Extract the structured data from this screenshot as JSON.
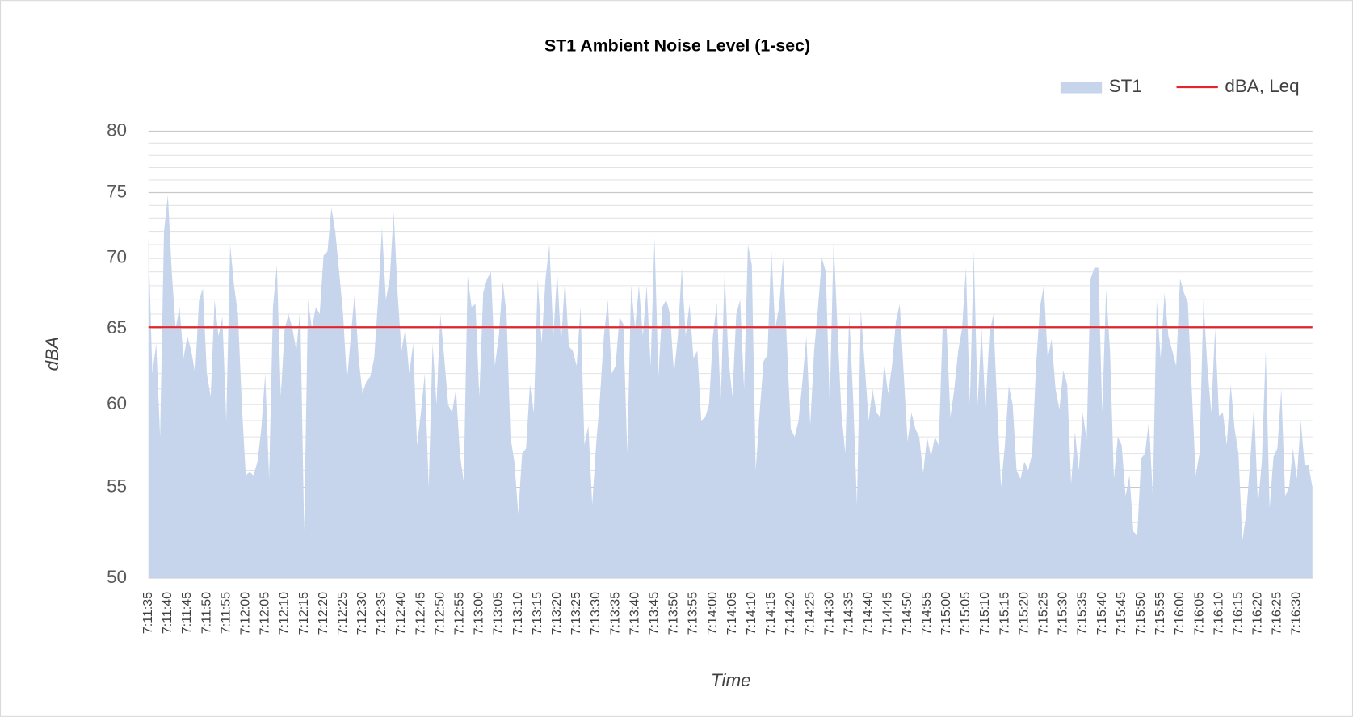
{
  "chart_data": {
    "type": "area",
    "title": "ST1 Ambient Noise Level (1-sec)",
    "x_label": "Time",
    "y_label": "dBA",
    "log_scale": true,
    "grid": true,
    "legend": "top-right",
    "ylim": [
      50,
      80
    ],
    "yticks": [
      50,
      55,
      60,
      65,
      70,
      75,
      80
    ],
    "minor_yticks": [
      51,
      52,
      53,
      54,
      56,
      57,
      58,
      59,
      61,
      62,
      63,
      64,
      66,
      67,
      68,
      69,
      71,
      72,
      73,
      74,
      76,
      77,
      78,
      79
    ],
    "categories": [
      "7:11:35",
      null,
      null,
      null,
      null,
      "7:11:40",
      null,
      null,
      null,
      null,
      "7:11:45",
      null,
      null,
      null,
      null,
      "7:11:50",
      null,
      null,
      null,
      null,
      "7:11:55",
      null,
      null,
      null,
      null,
      "7:12:00",
      null,
      null,
      null,
      null,
      "7:12:05",
      null,
      null,
      null,
      null,
      "7:12:10",
      null,
      null,
      null,
      null,
      "7:12:15",
      null,
      null,
      null,
      null,
      "7:12:20",
      null,
      null,
      null,
      null,
      "7:12:25",
      null,
      null,
      null,
      null,
      "7:12:30",
      null,
      null,
      null,
      null,
      "7:12:35",
      null,
      null,
      null,
      null,
      "7:12:40",
      null,
      null,
      null,
      null,
      "7:12:45",
      null,
      null,
      null,
      null,
      "7:12:50",
      null,
      null,
      null,
      null,
      "7:12:55",
      null,
      null,
      null,
      null,
      "7:13:00",
      null,
      null,
      null,
      null,
      "7:13:05",
      null,
      null,
      null,
      null,
      "7:13:10",
      null,
      null,
      null,
      null,
      "7:13:15",
      null,
      null,
      null,
      null,
      "7:13:20",
      null,
      null,
      null,
      null,
      "7:13:25",
      null,
      null,
      null,
      null,
      "7:13:30",
      null,
      null,
      null,
      null,
      "7:13:35",
      null,
      null,
      null,
      null,
      "7:13:40",
      null,
      null,
      null,
      null,
      "7:13:45",
      null,
      null,
      null,
      null,
      "7:13:50",
      null,
      null,
      null,
      null,
      "7:13:55",
      null,
      null,
      null,
      null,
      "7:14:00",
      null,
      null,
      null,
      null,
      "7:14:05",
      null,
      null,
      null,
      null,
      "7:14:10",
      null,
      null,
      null,
      null,
      "7:14:15",
      null,
      null,
      null,
      null,
      "7:14:20",
      null,
      null,
      null,
      null,
      "7:14:25",
      null,
      null,
      null,
      null,
      "7:14:30",
      null,
      null,
      null,
      null,
      "7:14:35",
      null,
      null,
      null,
      null,
      "7:14:40",
      null,
      null,
      null,
      null,
      "7:14:45",
      null,
      null,
      null,
      null,
      "7:14:50",
      null,
      null,
      null,
      null,
      "7:14:55",
      null,
      null,
      null,
      null,
      "7:15:00",
      null,
      null,
      null,
      null,
      "7:15:05",
      null,
      null,
      null,
      null,
      "7:15:10",
      null,
      null,
      null,
      null,
      "7:15:15",
      null,
      null,
      null,
      null,
      "7:15:20",
      null,
      null,
      null,
      null,
      "7:15:25",
      null,
      null,
      null,
      null,
      "7:15:30",
      null,
      null,
      null,
      null,
      "7:15:35",
      null,
      null,
      null,
      null,
      "7:15:40",
      null,
      null,
      null,
      null,
      "7:15:45",
      null,
      null,
      null,
      null,
      "7:15:50",
      null,
      null,
      null,
      null,
      "7:15:55",
      null,
      null,
      null,
      null,
      "7:16:00",
      null,
      null,
      null,
      null,
      "7:16:05",
      null,
      null,
      null,
      null,
      "7:16:10",
      null,
      null,
      null,
      null,
      "7:16:15",
      null,
      null,
      null,
      null,
      "7:16:20",
      null,
      null,
      null,
      null,
      "7:16:25",
      null,
      null,
      null,
      null,
      "7:16:30",
      null,
      null,
      null,
      null
    ],
    "series": [
      {
        "name": "ST1",
        "type": "area",
        "color": "#c6d4ec",
        "values": [
          71.5,
          62,
          64,
          58,
          72,
          74.8,
          69,
          65,
          66.5,
          63,
          64.5,
          63.5,
          62,
          67,
          67.8,
          62,
          60.5,
          67,
          64.5,
          65.8,
          59,
          71,
          68,
          66,
          60,
          55.7,
          55.9,
          55.7,
          56.5,
          58.5,
          62,
          55.5,
          66.5,
          69.5,
          60.5,
          65,
          66,
          65,
          63.5,
          66.5,
          52.5,
          67,
          65,
          66.5,
          66,
          70.2,
          70.5,
          73.8,
          72,
          69,
          66,
          61.5,
          64.5,
          67.5,
          63,
          60.7,
          61.5,
          61.8,
          63,
          67,
          72.3,
          67,
          68.5,
          73.5,
          67.5,
          63.5,
          65,
          62,
          64,
          57.5,
          59.5,
          62,
          55,
          64,
          60,
          66,
          63,
          60,
          59.5,
          61,
          57,
          55.3,
          68.7,
          66.5,
          66.7,
          60.5,
          67.5,
          68.5,
          69,
          62.5,
          64.5,
          68.3,
          66,
          58,
          56.5,
          53.5,
          57,
          57.3,
          61.3,
          59.5,
          68.5,
          64,
          68.5,
          71,
          64.5,
          69,
          64,
          68.5,
          63.8,
          63.5,
          62.5,
          66.5,
          57.5,
          58.7,
          54,
          57.5,
          60.5,
          64.5,
          67,
          62,
          62.5,
          65.8,
          65.3,
          57,
          68,
          65,
          68,
          64.5,
          68,
          62.5,
          71.5,
          61.8,
          66.5,
          67,
          66,
          62,
          64.5,
          69.3,
          64.5,
          66.7,
          63,
          63.5,
          59,
          59.2,
          60,
          64.5,
          66.8,
          60,
          69,
          63,
          60.5,
          66,
          67,
          61,
          71,
          69.5,
          56,
          59.5,
          62.8,
          63.2,
          70.7,
          65,
          66.5,
          70,
          64,
          58.5,
          58,
          59,
          61.5,
          64.5,
          58.7,
          63.5,
          66.5,
          70,
          69,
          60,
          71.3,
          65,
          59.5,
          57,
          66,
          60.5,
          54,
          66.3,
          62.5,
          59,
          61,
          59.5,
          59.2,
          62.7,
          60.7,
          62.5,
          65.5,
          66.7,
          62,
          57.7,
          59.5,
          58.5,
          58,
          55.8,
          58,
          56.8,
          58,
          57.5,
          65,
          65.2,
          59.2,
          61,
          63.5,
          65,
          69.3,
          60,
          70.5,
          60,
          65.1,
          59.7,
          64.5,
          66,
          60,
          55,
          57.5,
          61.2,
          60,
          56,
          55.5,
          56.5,
          56,
          57,
          62.5,
          66.5,
          68,
          63,
          64.3,
          61,
          59.7,
          62.2,
          61.3,
          55.2,
          58.3,
          56,
          59.5,
          57.8,
          68.5,
          69.3,
          69.3,
          59.5,
          67.7,
          63.5,
          55.5,
          58,
          57.5,
          54.5,
          55.7,
          52.5,
          52.3,
          56.7,
          57,
          59,
          54.5,
          67,
          63,
          67.5,
          64.5,
          63.5,
          62.5,
          68.5,
          67.5,
          66.8,
          61,
          55.7,
          57,
          67,
          62.5,
          59.5,
          65,
          59.3,
          59.5,
          57.5,
          61.3,
          58.5,
          57,
          52,
          53.5,
          56.5,
          60,
          54,
          56.5,
          63.5,
          53.8,
          56.8,
          57.3,
          61,
          54.5,
          55,
          57.3,
          55.5,
          59,
          56.3,
          56.3,
          55
        ]
      },
      {
        "name": "dBA, Leq",
        "type": "line",
        "color": "#e3242b",
        "value": 65.1
      }
    ]
  }
}
